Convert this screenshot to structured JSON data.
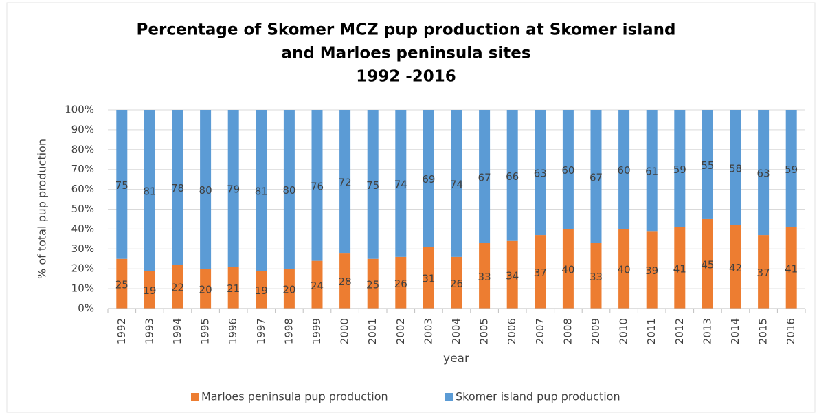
{
  "chart_data": {
    "type": "stacked_bar",
    "title": [
      "Percentage of Skomer MCZ pup production at Skomer island",
      "and Marloes peninsula sites",
      "1992 -2016"
    ],
    "x_label": "year",
    "y_label": "% of total pup production",
    "categories": [
      "1992",
      "1993",
      "1994",
      "1995",
      "1996",
      "1997",
      "1998",
      "1999",
      "2000",
      "2001",
      "2002",
      "2003",
      "2004",
      "2005",
      "2006",
      "2007",
      "2008",
      "2009",
      "2010",
      "2011",
      "2012",
      "2013",
      "2014",
      "2015",
      "2016"
    ],
    "series": [
      {
        "name": "Marloes peninsula pup production",
        "color": "#ed7d31",
        "values": [
          25,
          19,
          22,
          20,
          21,
          19,
          20,
          24,
          28,
          25,
          26,
          31,
          26,
          33,
          34,
          37,
          40,
          33,
          40,
          39,
          41,
          45,
          42,
          37,
          41
        ]
      },
      {
        "name": "Skomer island pup production",
        "color": "#5b9bd5",
        "values": [
          75,
          81,
          78,
          80,
          79,
          81,
          80,
          76,
          72,
          75,
          74,
          69,
          74,
          67,
          66,
          63,
          60,
          67,
          60,
          61,
          59,
          55,
          58,
          63,
          59
        ]
      }
    ],
    "ylim": [
      0,
      100
    ],
    "yticks": [
      {
        "value": 0,
        "label": "0%"
      },
      {
        "value": 10,
        "label": "10%"
      },
      {
        "value": 20,
        "label": "20%"
      },
      {
        "value": 30,
        "label": "30%"
      },
      {
        "value": 40,
        "label": "40%"
      },
      {
        "value": 50,
        "label": "50%"
      },
      {
        "value": 60,
        "label": "60%"
      },
      {
        "value": 70,
        "label": "70%"
      },
      {
        "value": 80,
        "label": "80%"
      },
      {
        "value": 90,
        "label": "90%"
      },
      {
        "value": 100,
        "label": "100%"
      }
    ],
    "grid": true,
    "legend": "bottom"
  }
}
